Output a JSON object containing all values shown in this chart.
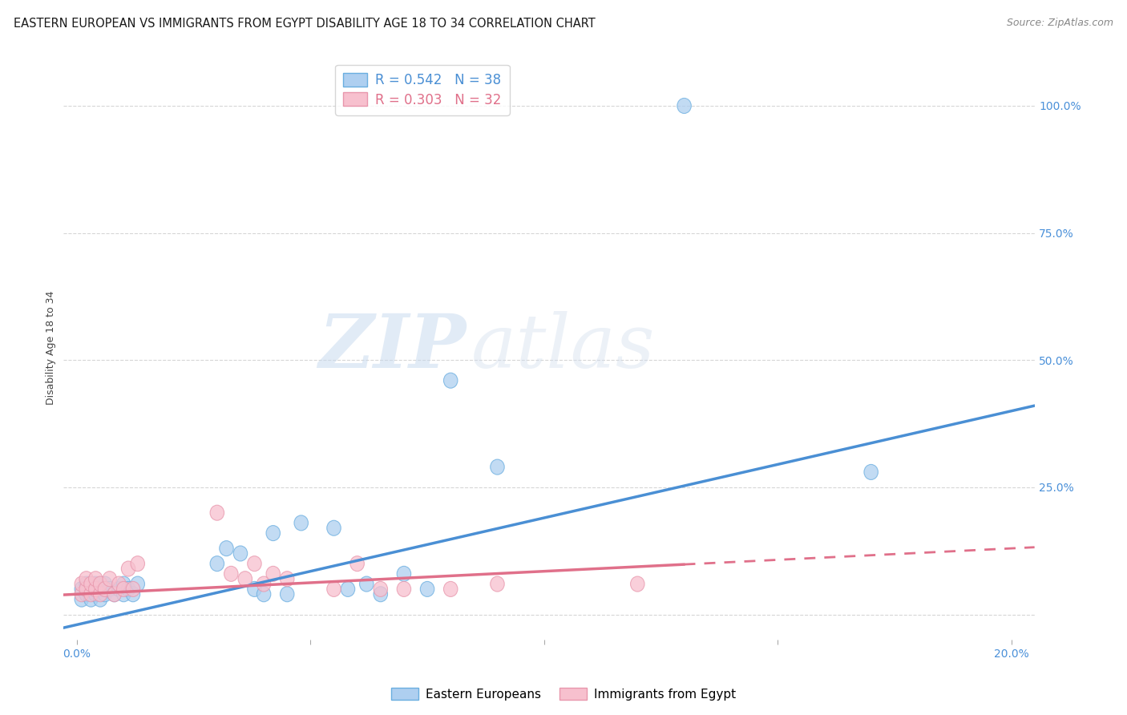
{
  "title": "EASTERN EUROPEAN VS IMMIGRANTS FROM EGYPT DISABILITY AGE 18 TO 34 CORRELATION CHART",
  "source": "Source: ZipAtlas.com",
  "ylabel": "Disability Age 18 to 34",
  "watermark_zip": "ZIP",
  "watermark_atlas": "atlas",
  "xlim": [
    -0.003,
    0.205
  ],
  "ylim": [
    -0.05,
    1.1
  ],
  "xtick_positions": [
    0.0,
    0.05,
    0.1,
    0.15,
    0.2
  ],
  "xticklabels": [
    "0.0%",
    "",
    "",
    "",
    "20.0%"
  ],
  "ytick_positions": [
    0.0,
    0.25,
    0.5,
    0.75,
    1.0
  ],
  "yticklabels_right": [
    "",
    "25.0%",
    "50.0%",
    "75.0%",
    "100.0%"
  ],
  "blue_R": 0.542,
  "blue_N": 38,
  "pink_R": 0.303,
  "pink_N": 32,
  "blue_fill": "#aecff0",
  "pink_fill": "#f7c0ce",
  "blue_edge": "#6aaee0",
  "pink_edge": "#e896ac",
  "blue_line": "#4a8fd4",
  "pink_line": "#e0708a",
  "grid_color": "#cccccc",
  "bg_color": "#ffffff",
  "blue_scatter_x": [
    0.001,
    0.001,
    0.002,
    0.002,
    0.003,
    0.003,
    0.004,
    0.004,
    0.005,
    0.005,
    0.006,
    0.006,
    0.007,
    0.008,
    0.009,
    0.01,
    0.01,
    0.011,
    0.012,
    0.013,
    0.03,
    0.032,
    0.035,
    0.038,
    0.04,
    0.042,
    0.045,
    0.048,
    0.055,
    0.058,
    0.062,
    0.065,
    0.07,
    0.075,
    0.08,
    0.09,
    0.13,
    0.17
  ],
  "blue_scatter_y": [
    0.03,
    0.05,
    0.04,
    0.06,
    0.03,
    0.05,
    0.04,
    0.06,
    0.03,
    0.05,
    0.04,
    0.06,
    0.05,
    0.04,
    0.05,
    0.04,
    0.06,
    0.05,
    0.04,
    0.06,
    0.1,
    0.13,
    0.12,
    0.05,
    0.04,
    0.16,
    0.04,
    0.18,
    0.17,
    0.05,
    0.06,
    0.04,
    0.08,
    0.05,
    0.46,
    0.29,
    1.0,
    0.28
  ],
  "pink_scatter_x": [
    0.001,
    0.001,
    0.002,
    0.002,
    0.003,
    0.003,
    0.004,
    0.004,
    0.005,
    0.005,
    0.006,
    0.007,
    0.008,
    0.009,
    0.01,
    0.011,
    0.012,
    0.013,
    0.03,
    0.033,
    0.036,
    0.038,
    0.04,
    0.042,
    0.045,
    0.055,
    0.06,
    0.065,
    0.07,
    0.08,
    0.09,
    0.12
  ],
  "pink_scatter_y": [
    0.04,
    0.06,
    0.05,
    0.07,
    0.04,
    0.06,
    0.05,
    0.07,
    0.04,
    0.06,
    0.05,
    0.07,
    0.04,
    0.06,
    0.05,
    0.09,
    0.05,
    0.1,
    0.2,
    0.08,
    0.07,
    0.1,
    0.06,
    0.08,
    0.07,
    0.05,
    0.1,
    0.05,
    0.05,
    0.05,
    0.06,
    0.06
  ],
  "title_fontsize": 10.5,
  "source_fontsize": 9,
  "tick_fontsize": 10,
  "ylabel_fontsize": 9,
  "legend_fontsize": 12
}
